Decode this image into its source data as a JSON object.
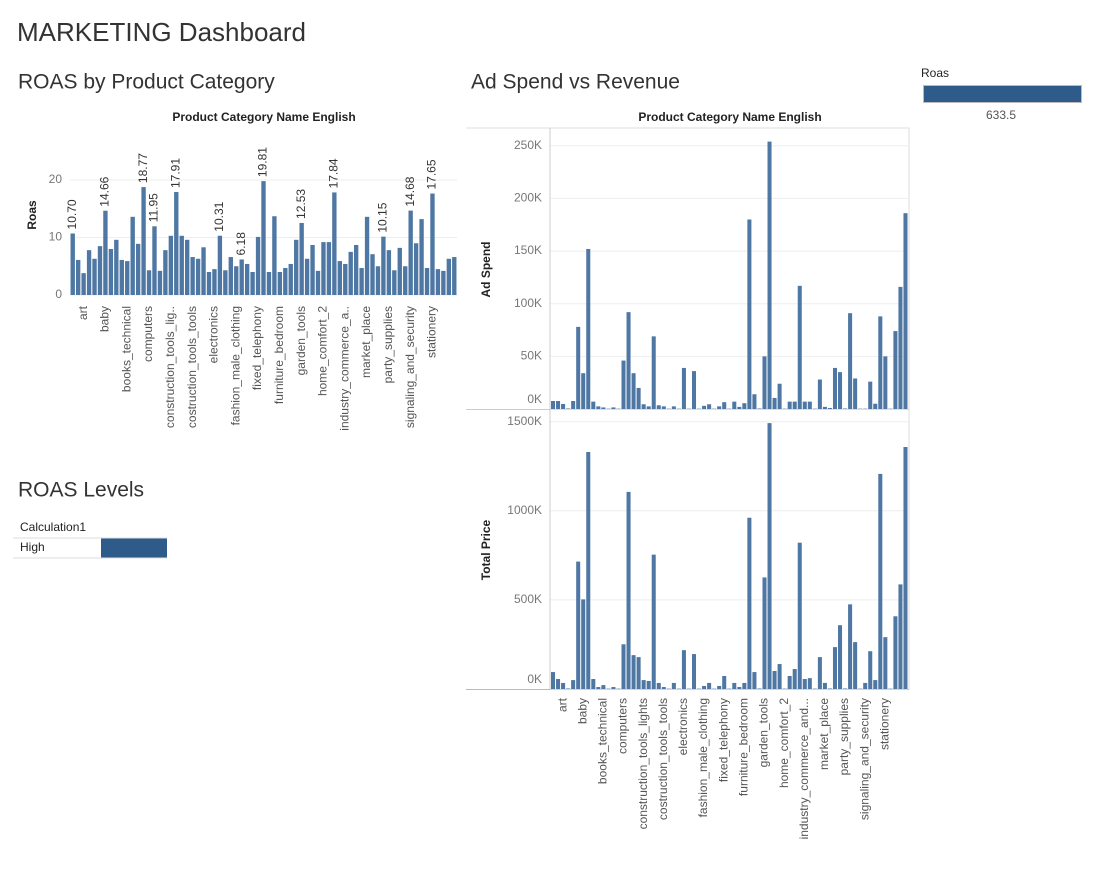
{
  "dashboard_title": "MARKETING Dashboard",
  "chart_data": [
    {
      "type": "bar",
      "title": "ROAS by Product Category",
      "x_label": "Product Category Name English",
      "y_label": "Roas",
      "color": "#4e77a3",
      "grid": true,
      "ylim": [
        0,
        28.7
      ],
      "yticks": [
        0,
        10,
        20
      ],
      "categories": [
        null,
        null,
        "art",
        null,
        null,
        null,
        "baby",
        null,
        null,
        null,
        "books_technical",
        null,
        null,
        null,
        "computers",
        null,
        null,
        null,
        "construction_tools_lig..",
        null,
        null,
        null,
        "costruction_tools_tools",
        null,
        null,
        null,
        "electronics",
        null,
        null,
        null,
        "fashion_male_clothing",
        null,
        null,
        null,
        "fixed_telephony",
        null,
        null,
        null,
        "furniture_bedroom",
        null,
        null,
        null,
        "garden_tools",
        null,
        null,
        null,
        "home_comfort_2",
        null,
        null,
        null,
        "industry_commerce_a..",
        null,
        null,
        null,
        "market_place",
        null,
        null,
        null,
        "party_supplies",
        null,
        null,
        null,
        "signaling_and_security",
        null,
        null,
        null,
        "stationery",
        null,
        null,
        null,
        null
      ],
      "values": [
        10.7,
        6.1,
        3.8,
        7.8,
        6.3,
        8.5,
        14.66,
        8,
        9.6,
        6.1,
        5.9,
        13.6,
        8.9,
        18.77,
        4.3,
        11.95,
        4.2,
        7.8,
        10.3,
        17.91,
        10.3,
        9.6,
        6.6,
        6.3,
        8.3,
        4,
        4.5,
        10.31,
        4.3,
        6.6,
        5,
        6.18,
        5.4,
        4,
        10.1,
        19.81,
        4,
        13.7,
        4,
        4.7,
        5.4,
        9.6,
        12.53,
        6.3,
        8.7,
        4.2,
        9.2,
        9.2,
        17.84,
        5.9,
        5.4,
        7.5,
        8.7,
        4.7,
        13.6,
        7.1,
        5,
        10.15,
        7.8,
        4.3,
        8.2,
        5,
        14.68,
        9,
        13.2,
        4.7,
        17.65,
        4.5,
        4.2,
        6.3,
        6.6
      ],
      "value_labels": [
        "10.70",
        null,
        null,
        null,
        null,
        null,
        "14.66",
        null,
        null,
        null,
        null,
        null,
        null,
        "18.77",
        null,
        "11.95",
        null,
        null,
        null,
        "17.91",
        null,
        null,
        null,
        null,
        null,
        null,
        null,
        "10.31",
        null,
        null,
        null,
        "6.18",
        null,
        null,
        null,
        "19.81",
        null,
        null,
        null,
        null,
        null,
        null,
        "12.53",
        null,
        null,
        null,
        null,
        null,
        "17.84",
        null,
        null,
        null,
        null,
        null,
        null,
        null,
        null,
        "10.15",
        null,
        null,
        null,
        null,
        "14.68",
        null,
        null,
        null,
        "17.65",
        null,
        null,
        null,
        null
      ]
    },
    {
      "type": "bar",
      "title": "Ad Spend vs Revenue",
      "x_label": "Product Category Name English",
      "grid": true,
      "categories": [
        null,
        null,
        "art",
        null,
        null,
        null,
        "baby",
        null,
        null,
        null,
        "books_technical",
        null,
        null,
        null,
        "computers",
        null,
        null,
        null,
        "construction_tools_lights",
        null,
        null,
        null,
        "costruction_tools_tools",
        null,
        null,
        null,
        "electronics",
        null,
        null,
        null,
        "fashion_male_clothing",
        null,
        null,
        null,
        "fixed_telephony",
        null,
        null,
        null,
        "furniture_bedroom",
        null,
        null,
        null,
        "garden_tools",
        null,
        null,
        null,
        "home_comfort_2",
        null,
        null,
        null,
        "industry_commerce_and...",
        null,
        null,
        null,
        "market_place",
        null,
        null,
        null,
        "party_supplies",
        null,
        null,
        null,
        "signaling_and_security",
        null,
        null,
        null,
        "stationery",
        null,
        null,
        null,
        null
      ],
      "series": [
        {
          "name": "Ad Spend",
          "color": "#4e77a3",
          "ylim": [
            0,
            265000
          ],
          "yticks": [
            {
              "value": 0,
              "label": "0K"
            },
            {
              "value": 50000,
              "label": "50K"
            },
            {
              "value": 100000,
              "label": "100K"
            },
            {
              "value": 150000,
              "label": "150K"
            },
            {
              "value": 200000,
              "label": "200K"
            },
            {
              "value": 250000,
              "label": "250K"
            }
          ],
          "values": [
            7600,
            7600,
            4800,
            500,
            7600,
            78000,
            34000,
            152000,
            7000,
            2500,
            1500,
            300,
            1500,
            300,
            46000,
            92000,
            34000,
            20000,
            4500,
            2500,
            69000,
            3500,
            2500,
            300,
            2500,
            300,
            39000,
            300,
            36000,
            300,
            3000,
            4500,
            300,
            2500,
            6500,
            300,
            7000,
            2000,
            5500,
            180000,
            14000,
            500,
            50000,
            254000,
            10500,
            24000,
            300,
            7000,
            7000,
            117000,
            7000,
            7000,
            300,
            28000,
            2000,
            1000,
            39000,
            35000,
            500,
            91000,
            29000,
            300,
            300,
            26000,
            5000,
            88000,
            50000,
            300,
            74000,
            116000,
            186000
          ]
        },
        {
          "name": "Total Price",
          "color": "#4e77a3",
          "ylim": [
            0,
            1560000
          ],
          "yticks": [
            {
              "value": 0,
              "label": "0K"
            },
            {
              "value": 500000,
              "label": "500K"
            },
            {
              "value": 1000000,
              "label": "1000K"
            },
            {
              "value": 1500000,
              "label": "1500K"
            }
          ],
          "values": [
            95000,
            56000,
            34000,
            3000,
            50000,
            715000,
            503000,
            1330000,
            56000,
            11000,
            22000,
            2000,
            11000,
            2000,
            251000,
            1106000,
            190000,
            179000,
            50000,
            45000,
            754000,
            34000,
            11000,
            2000,
            34000,
            2000,
            218000,
            2000,
            196000,
            2000,
            17000,
            34000,
            2000,
            17000,
            73000,
            2000,
            34000,
            11000,
            34000,
            961000,
            95000,
            3000,
            626000,
            1492000,
            101000,
            140000,
            2000,
            73000,
            112000,
            821000,
            56000,
            61000,
            2000,
            179000,
            34000,
            3000,
            235000,
            358000,
            3000,
            475000,
            263000,
            2000,
            34000,
            212000,
            50000,
            1207000,
            291000,
            2000,
            408000,
            587000,
            1358000
          ]
        }
      ]
    }
  ],
  "roas_levels": {
    "title": "ROAS Levels",
    "header": "Calculation1",
    "rows": [
      "High"
    ],
    "color": "#2f5b8a"
  },
  "roas_legend": {
    "title": "Roas",
    "value": 633.5,
    "color": "#2f5b8a"
  }
}
